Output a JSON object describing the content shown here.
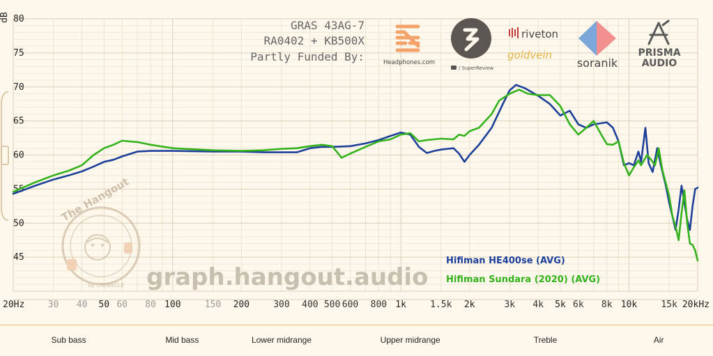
{
  "header": {
    "line1": "GRAS 43AG-7",
    "line2": "RA0402 + KB500X",
    "line3": "Partly Funded By:"
  },
  "sponsors": {
    "headphones": "Headphones.com",
    "superreview": "/ SuperReview",
    "riveton": "riveton",
    "goldvein": "goldvein",
    "soranik": "soranik",
    "prisma1": "PRISMA",
    "prisma2": "AUDIO"
  },
  "watermark": "graph.hangout.audio",
  "badge": {
    "top": "The Hangout",
    "bottom": "by CRINACLE"
  },
  "bands": [
    {
      "label": "Sub bass",
      "x": 35
    },
    {
      "label": "Mid bass",
      "x": 110
    },
    {
      "label": "Lower midrange",
      "x": 300
    },
    {
      "label": "Upper midrange",
      "x": 1100
    },
    {
      "label": "Treble",
      "x": 4300
    },
    {
      "label": "Air",
      "x": 13500
    }
  ],
  "colors": {
    "he400se": "#1c3f9a",
    "sundara": "#33b21c"
  },
  "chart_data": {
    "type": "line",
    "xscale": "log",
    "xlim": [
      20,
      20000
    ],
    "ylim": [
      40,
      80
    ],
    "ylabel": "dB",
    "grid": true,
    "legend_position": "bottom-right",
    "yticks": [
      45,
      50,
      55,
      60,
      65,
      70,
      75,
      80
    ],
    "ytick_labels": [
      "45",
      "50",
      "55",
      "60",
      "65",
      "70",
      "75",
      "80"
    ],
    "xticks": [
      {
        "v": 20,
        "label": "20Hz",
        "style": "bold"
      },
      {
        "v": 30,
        "label": "30",
        "style": "dim"
      },
      {
        "v": 40,
        "label": "40",
        "style": "dim"
      },
      {
        "v": 50,
        "label": "50",
        "style": "bold"
      },
      {
        "v": 60,
        "label": "60",
        "style": "dim"
      },
      {
        "v": 80,
        "label": "80",
        "style": "dim"
      },
      {
        "v": 100,
        "label": "100",
        "style": "bold"
      },
      {
        "v": 150,
        "label": "150",
        "style": "dim"
      },
      {
        "v": 200,
        "label": "200",
        "style": "bold"
      },
      {
        "v": 300,
        "label": "300",
        "style": "norm"
      },
      {
        "v": 400,
        "label": "400",
        "style": "norm"
      },
      {
        "v": 500,
        "label": "500",
        "style": "norm"
      },
      {
        "v": 600,
        "label": "600",
        "style": "norm"
      },
      {
        "v": 800,
        "label": "800",
        "style": "norm"
      },
      {
        "v": 1000,
        "label": "1k",
        "style": "bold"
      },
      {
        "v": 1500,
        "label": "1.5k",
        "style": "norm"
      },
      {
        "v": 2000,
        "label": "2k",
        "style": "bold"
      },
      {
        "v": 3000,
        "label": "3k",
        "style": "norm"
      },
      {
        "v": 4000,
        "label": "4k",
        "style": "norm"
      },
      {
        "v": 5000,
        "label": "5k",
        "style": "bold"
      },
      {
        "v": 6000,
        "label": "6k",
        "style": "norm"
      },
      {
        "v": 8000,
        "label": "8k",
        "style": "norm"
      },
      {
        "v": 10000,
        "label": "10k",
        "style": "bold"
      },
      {
        "v": 15000,
        "label": "15k",
        "style": "norm"
      },
      {
        "v": 20000,
        "label": "20kHz",
        "style": "bold"
      }
    ],
    "series": [
      {
        "name": "Hifiman HE400se (AVG)",
        "color": "#1c3f9a",
        "points": [
          [
            20,
            54.3
          ],
          [
            25,
            55.5
          ],
          [
            30,
            56.4
          ],
          [
            35,
            57.0
          ],
          [
            40,
            57.6
          ],
          [
            45,
            58.3
          ],
          [
            50,
            59.0
          ],
          [
            55,
            59.3
          ],
          [
            60,
            59.8
          ],
          [
            70,
            60.5
          ],
          [
            80,
            60.6
          ],
          [
            100,
            60.6
          ],
          [
            150,
            60.5
          ],
          [
            200,
            60.5
          ],
          [
            250,
            60.4
          ],
          [
            300,
            60.4
          ],
          [
            350,
            60.4
          ],
          [
            400,
            61.0
          ],
          [
            450,
            61.2
          ],
          [
            500,
            61.2
          ],
          [
            600,
            61.3
          ],
          [
            700,
            61.7
          ],
          [
            800,
            62.2
          ],
          [
            900,
            62.8
          ],
          [
            1000,
            63.3
          ],
          [
            1100,
            63.0
          ],
          [
            1200,
            61.2
          ],
          [
            1300,
            60.3
          ],
          [
            1400,
            60.6
          ],
          [
            1500,
            60.8
          ],
          [
            1700,
            61.0
          ],
          [
            1800,
            60.2
          ],
          [
            1900,
            59.0
          ],
          [
            2000,
            60.0
          ],
          [
            2200,
            61.5
          ],
          [
            2500,
            64.0
          ],
          [
            2800,
            67.5
          ],
          [
            3000,
            69.5
          ],
          [
            3200,
            70.3
          ],
          [
            3500,
            69.8
          ],
          [
            4000,
            68.7
          ],
          [
            4500,
            67.5
          ],
          [
            5000,
            65.8
          ],
          [
            5500,
            66.5
          ],
          [
            6000,
            64.5
          ],
          [
            6500,
            64.0
          ],
          [
            7000,
            64.5
          ],
          [
            8000,
            64.8
          ],
          [
            8500,
            64.0
          ],
          [
            9000,
            62.0
          ],
          [
            9500,
            58.5
          ],
          [
            10000,
            58.8
          ],
          [
            10500,
            58.5
          ],
          [
            11000,
            60.5
          ],
          [
            11300,
            59.0
          ],
          [
            11800,
            64.0
          ],
          [
            12200,
            58.8
          ],
          [
            12700,
            57.5
          ],
          [
            13300,
            61.0
          ],
          [
            13800,
            58.5
          ],
          [
            14500,
            55.5
          ],
          [
            15000,
            53.0
          ],
          [
            15500,
            51.0
          ],
          [
            16000,
            49.0
          ],
          [
            16500,
            52.0
          ],
          [
            17000,
            55.5
          ],
          [
            17500,
            53.0
          ],
          [
            18000,
            50.5
          ],
          [
            18500,
            49.0
          ],
          [
            19000,
            52.5
          ],
          [
            19500,
            55.0
          ],
          [
            20000,
            55.2
          ]
        ]
      },
      {
        "name": "Hifiman Sundara (2020) (AVG)",
        "color": "#33b21c",
        "points": [
          [
            20,
            54.6
          ],
          [
            25,
            56.0
          ],
          [
            30,
            57.0
          ],
          [
            35,
            57.7
          ],
          [
            40,
            58.5
          ],
          [
            45,
            60.0
          ],
          [
            50,
            61.0
          ],
          [
            55,
            61.5
          ],
          [
            60,
            62.1
          ],
          [
            70,
            61.9
          ],
          [
            80,
            61.5
          ],
          [
            100,
            61.0
          ],
          [
            150,
            60.7
          ],
          [
            200,
            60.6
          ],
          [
            250,
            60.7
          ],
          [
            300,
            60.9
          ],
          [
            350,
            61.0
          ],
          [
            400,
            61.3
          ],
          [
            450,
            61.5
          ],
          [
            500,
            61.3
          ],
          [
            550,
            59.6
          ],
          [
            600,
            60.2
          ],
          [
            700,
            61.2
          ],
          [
            800,
            62.0
          ],
          [
            900,
            62.3
          ],
          [
            1000,
            63.0
          ],
          [
            1100,
            63.2
          ],
          [
            1200,
            62.0
          ],
          [
            1300,
            62.2
          ],
          [
            1500,
            62.4
          ],
          [
            1700,
            62.3
          ],
          [
            1800,
            63.0
          ],
          [
            1900,
            62.8
          ],
          [
            2000,
            63.5
          ],
          [
            2200,
            64.0
          ],
          [
            2500,
            66.0
          ],
          [
            2700,
            68.0
          ],
          [
            3000,
            69.0
          ],
          [
            3300,
            69.6
          ],
          [
            3600,
            69.0
          ],
          [
            4000,
            68.8
          ],
          [
            4500,
            68.8
          ],
          [
            5000,
            67.2
          ],
          [
            5500,
            64.5
          ],
          [
            6000,
            63.0
          ],
          [
            6500,
            64.0
          ],
          [
            7000,
            65.0
          ],
          [
            7500,
            63.2
          ],
          [
            8000,
            61.6
          ],
          [
            8500,
            61.5
          ],
          [
            9000,
            62.0
          ],
          [
            9500,
            58.8
          ],
          [
            10000,
            57.0
          ],
          [
            10500,
            58.2
          ],
          [
            11000,
            59.2
          ],
          [
            11300,
            58.5
          ],
          [
            12000,
            60.0
          ],
          [
            12500,
            59.3
          ],
          [
            13000,
            58.5
          ],
          [
            13500,
            61.0
          ],
          [
            14000,
            57.8
          ],
          [
            15000,
            54.0
          ],
          [
            15500,
            51.0
          ],
          [
            16000,
            49.5
          ],
          [
            16500,
            47.5
          ],
          [
            17000,
            51.5
          ],
          [
            17500,
            54.8
          ],
          [
            18000,
            50.0
          ],
          [
            18500,
            47.0
          ],
          [
            19000,
            46.8
          ],
          [
            19500,
            46.0
          ],
          [
            20000,
            44.5
          ]
        ]
      }
    ]
  }
}
